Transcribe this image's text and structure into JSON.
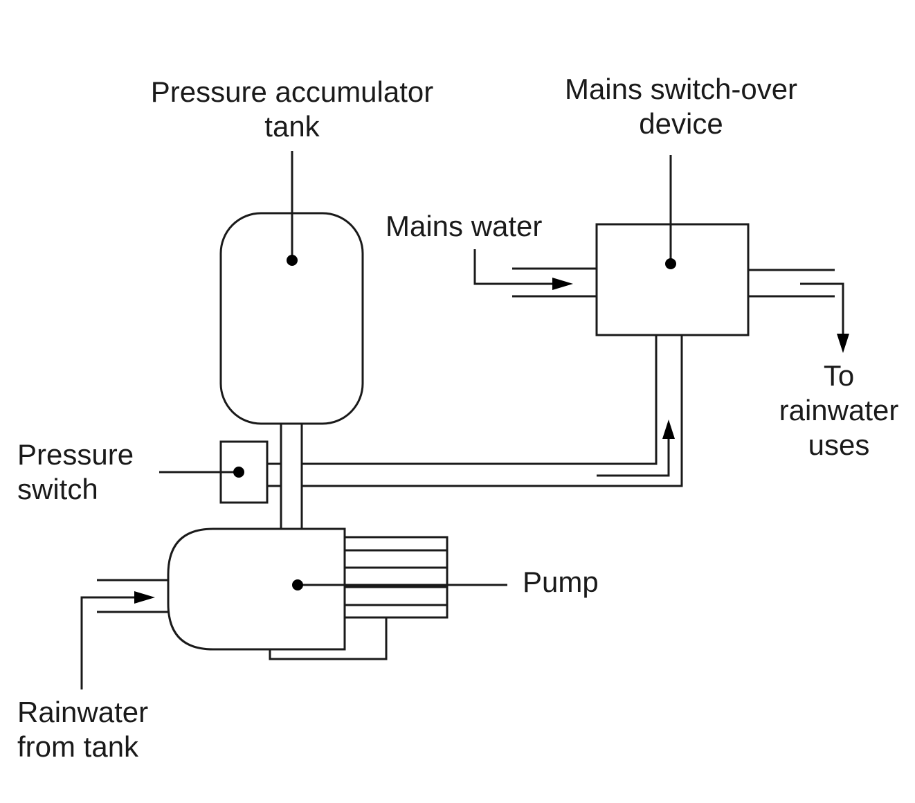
{
  "labels": {
    "pressure_accumulator_tank": [
      "Pressure accumulator",
      "tank"
    ],
    "mains_switch_over_device": [
      "Mains switch-over",
      "device"
    ],
    "mains_water": "Mains water",
    "to_rainwater_uses": [
      "To",
      "rainwater",
      "uses"
    ],
    "pressure_switch": [
      "Pressure",
      "switch"
    ],
    "pump": "Pump",
    "rainwater_from_tank": [
      "Rainwater",
      "from tank"
    ]
  },
  "colors": {
    "line": "#1a1a1a",
    "background": "#ffffff"
  }
}
